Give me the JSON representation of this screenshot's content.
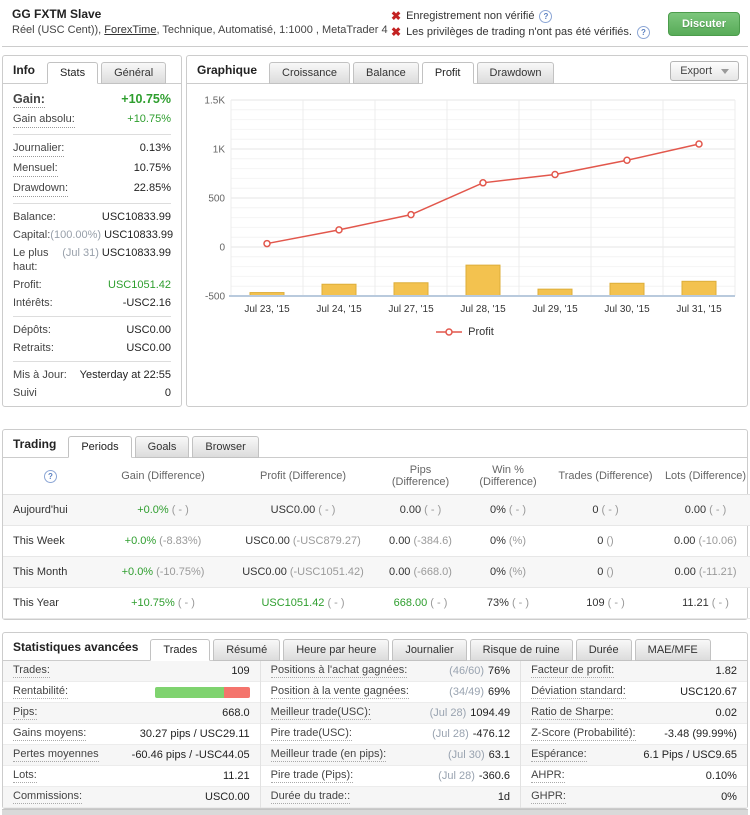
{
  "header": {
    "title": "GG FXTM Slave",
    "subtitle_pre": "Réel (USC Cent)), ",
    "subtitle_link": "ForexTime",
    "subtitle_post": ", Technique, Automatisé, 1:1000 , MetaTrader 4",
    "warning1": "Enregistrement non vérifié",
    "warning2": "Les privilèges de trading n'ont pas été vérifiés.",
    "chat_button": "Discuter"
  },
  "colors": {
    "gain_green": "#2e9e2e",
    "warning_red": "#c32222",
    "line_red": "#e2574c",
    "bar_yellow": "#f3c24f",
    "win_bar_green": "#7fd36f",
    "win_bar_red": "#f4746c",
    "button_green": "#58ab58"
  },
  "info_panel": {
    "title": "Info",
    "tabs": [
      {
        "label": "Stats",
        "active": true
      },
      {
        "label": "Général",
        "active": false
      }
    ],
    "rows": [
      {
        "label": "Gain:",
        "value": "+10.75%",
        "green": true,
        "big": true,
        "tip": true
      },
      {
        "label": "Gain absolu:",
        "value": "+10.75%",
        "green": true,
        "tip": true
      },
      {
        "label": "Journalier:",
        "value": "0.13%",
        "tip": true,
        "divider": true
      },
      {
        "label": "Mensuel:",
        "value": "10.75%",
        "tip": true
      },
      {
        "label": "Drawdown:",
        "value": "22.85%",
        "tip": true
      },
      {
        "label": "Balance:",
        "value": "USC10833.99",
        "divider": true
      },
      {
        "label": "Capital:",
        "pre": "(100.00%)",
        "value": "USC10833.99"
      },
      {
        "label": "Le plus haut:",
        "pre": "(Jul 31)",
        "value": "USC10833.99"
      },
      {
        "label": "Profit:",
        "value": "USC1051.42",
        "green": true
      },
      {
        "label": "Intérêts:",
        "value": "-USC2.16"
      },
      {
        "label": "Dépôts:",
        "value": "USC0.00",
        "divider": true
      },
      {
        "label": "Retraits:",
        "value": "USC0.00"
      },
      {
        "label": "Mis à Jour:",
        "value": "Yesterday at 22:55",
        "divider": true
      },
      {
        "label": "Suivi",
        "value": "0"
      }
    ]
  },
  "chart_panel": {
    "title": "Graphique",
    "tabs": [
      {
        "label": "Croissance",
        "active": false
      },
      {
        "label": "Balance",
        "active": false
      },
      {
        "label": "Profit",
        "active": true
      },
      {
        "label": "Drawdown",
        "active": false
      }
    ],
    "export_label": "Export"
  },
  "chart_data": {
    "type": "line+bar",
    "categories": [
      "Jul 23, '15",
      "Jul 24, '15",
      "Jul 27, '15",
      "Jul 28, '15",
      "Jul 29, '15",
      "Jul 30, '15",
      "Jul 31, '15"
    ],
    "series": [
      {
        "name": "Profit",
        "type": "line",
        "color": "#e2574c",
        "values": [
          35,
          175,
          330,
          655,
          740,
          885,
          1051
        ]
      },
      {
        "name": "daily-volume-bars",
        "type": "bar",
        "color": "#f3c24f",
        "baseline": -500,
        "values": [
          -465,
          -380,
          -365,
          -185,
          -430,
          -370,
          -350
        ]
      }
    ],
    "ylim": [
      -500,
      1500
    ],
    "yticks": [
      {
        "label": "1.5K",
        "value": 1500
      },
      {
        "label": "1K",
        "value": 1000
      },
      {
        "label": "500",
        "value": 500
      },
      {
        "label": "0",
        "value": 0
      },
      {
        "label": "-500",
        "value": -500
      }
    ],
    "grid": true,
    "legend_position": "bottom"
  },
  "trading_panel": {
    "title": "Trading",
    "tabs": [
      {
        "label": "Periods",
        "active": true
      },
      {
        "label": "Goals",
        "active": false
      },
      {
        "label": "Browser",
        "active": false
      }
    ],
    "columns": [
      "Gain (Difference)",
      "Profit (Difference)",
      "Pips (Difference)",
      "Win % (Difference)",
      "Trades (Difference)",
      "Lots (Difference)"
    ],
    "rows": [
      {
        "label": "Aujourd'hui",
        "cells": [
          {
            "main": "+0.0%",
            "diff": "( - )",
            "green": true
          },
          {
            "main": "USC0.00",
            "diff": "( - )"
          },
          {
            "main": "0.00",
            "diff": "( - )"
          },
          {
            "main": "0%",
            "diff": "( - )"
          },
          {
            "main": "0",
            "diff": "( - )"
          },
          {
            "main": "0.00",
            "diff": "( - )"
          }
        ]
      },
      {
        "label": "This Week",
        "cells": [
          {
            "main": "+0.0%",
            "diff": "(-8.83%)",
            "green": true
          },
          {
            "main": "USC0.00",
            "diff": "(-USC879.27)"
          },
          {
            "main": "0.00",
            "diff": "(-384.6)"
          },
          {
            "main": "0%",
            "diff": "(%)"
          },
          {
            "main": "0",
            "diff": "()"
          },
          {
            "main": "0.00",
            "diff": "(-10.06)"
          }
        ]
      },
      {
        "label": "This Month",
        "cells": [
          {
            "main": "+0.0%",
            "diff": "(-10.75%)",
            "green": true
          },
          {
            "main": "USC0.00",
            "diff": "(-USC1051.42)"
          },
          {
            "main": "0.00",
            "diff": "(-668.0)"
          },
          {
            "main": "0%",
            "diff": "(%)"
          },
          {
            "main": "0",
            "diff": "()"
          },
          {
            "main": "0.00",
            "diff": "(-11.21)"
          }
        ]
      },
      {
        "label": "This Year",
        "cells": [
          {
            "main": "+10.75%",
            "diff": "( - )",
            "green": true
          },
          {
            "main": "USC1051.42",
            "diff": "( - )",
            "green": true
          },
          {
            "main": "668.00",
            "diff": "( - )",
            "green": true
          },
          {
            "main": "73%",
            "diff": "( - )"
          },
          {
            "main": "109",
            "diff": "( - )"
          },
          {
            "main": "11.21",
            "diff": "( - )"
          }
        ]
      }
    ]
  },
  "stats_panel": {
    "title": "Statistiques avancées",
    "tabs": [
      {
        "label": "Trades",
        "active": true
      },
      {
        "label": "Résumé",
        "active": false
      },
      {
        "label": "Heure par heure",
        "active": false
      },
      {
        "label": "Journalier",
        "active": false
      },
      {
        "label": "Risque de ruine",
        "active": false
      },
      {
        "label": "Durée",
        "active": false
      },
      {
        "label": "MAE/MFE",
        "active": false
      }
    ],
    "profitability": {
      "win_pct": 73,
      "loss_pct": 27
    },
    "columns": [
      [
        {
          "label": "Trades:",
          "value": "109"
        },
        {
          "label": "Rentabilité:",
          "bar": true
        },
        {
          "label": "Pips:",
          "value": "668.0"
        },
        {
          "label": "Gains moyens:",
          "value": "30.27 pips / USC29.11"
        },
        {
          "label": "Pertes moyennes",
          "value": "-60.46 pips / -USC44.05"
        },
        {
          "label": "Lots:",
          "value": "11.21"
        },
        {
          "label": "Commissions:",
          "value": "USC0.00"
        }
      ],
      [
        {
          "label": "Positions à l'achat gagnées:",
          "pre": "(46/60)",
          "value": "76%"
        },
        {
          "label": "Position à la vente gagnées:",
          "pre": "(34/49)",
          "value": "69%"
        },
        {
          "label": "Meilleur trade(USC):",
          "pre": "(Jul 28)",
          "value": "1094.49"
        },
        {
          "label": "Pire trade(USC):",
          "pre": "(Jul 28)",
          "value": "-476.12"
        },
        {
          "label": "Meilleur trade (en pips):",
          "pre": "(Jul 30)",
          "value": "63.1"
        },
        {
          "label": "Pire trade (Pips):",
          "pre": "(Jul 28)",
          "value": "-360.6"
        },
        {
          "label": "Durée du trade::",
          "value": "1d"
        }
      ],
      [
        {
          "label": "Facteur de profit:",
          "value": "1.82"
        },
        {
          "label": "Déviation standard:",
          "value": "USC120.67"
        },
        {
          "label": "Ratio de Sharpe:",
          "value": "0.02"
        },
        {
          "label": "Z-Score (Probabilité):",
          "value": "-3.48 (99.99%)"
        },
        {
          "label": "Espérance:",
          "value": "6.1 Pips / USC9.65"
        },
        {
          "label": "AHPR:",
          "value": "0.10%"
        },
        {
          "label": "GHPR:",
          "value": "0%"
        }
      ]
    ]
  }
}
